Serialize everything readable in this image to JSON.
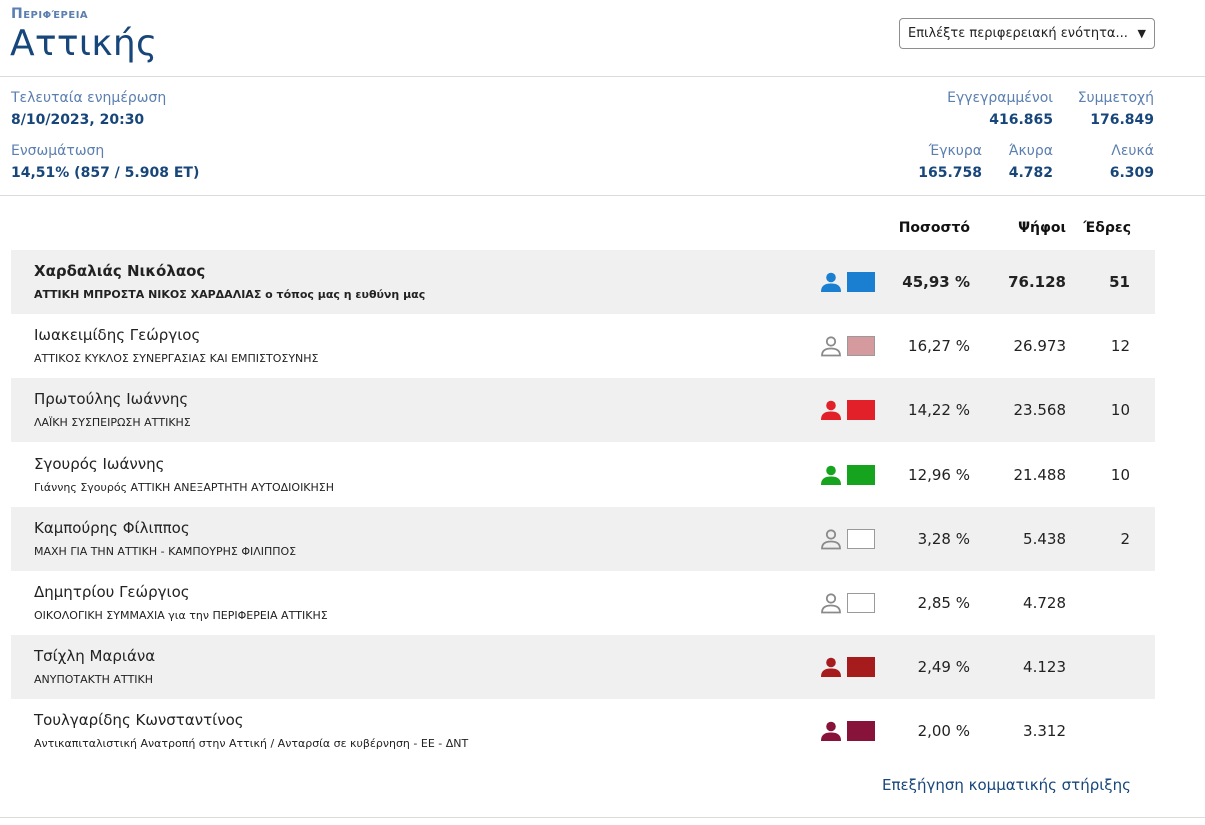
{
  "header": {
    "region_label": "Περιφέρεια",
    "region_name": "Αττικής",
    "select_placeholder": "Επιλέξτε περιφερειακή ενότητα..."
  },
  "stats": {
    "last_update_label": "Τελευταία ενημέρωση",
    "last_update_value": "8/10/2023, 20:30",
    "integration_label": "Ενσωμάτωση",
    "integration_value": "14,51% (857 / 5.908 ΕΤ)",
    "registered_label": "Εγγεγραμμένοι",
    "registered_value": "416.865",
    "turnout_label": "Συμμετοχή",
    "turnout_value": "176.849",
    "valid_label": "Έγκυρα",
    "valid_value": "165.758",
    "invalid_label": "Άκυρα",
    "invalid_value": "4.782",
    "blank_label": "Λευκά",
    "blank_value": "6.309"
  },
  "table": {
    "headers": {
      "pct": "Ποσοστό",
      "votes": "Ψήφοι",
      "seats": "Έδρες"
    },
    "rows": [
      {
        "name": "Χαρδαλιάς Νικόλαος",
        "party": "ΑΤΤΙΚΗ ΜΠΡΟΣΤΑ ΝΙΚΟΣ ΧΑΡΔΑΛΙΑΣ ο τόπος μας η ευθύνη μας",
        "pct": "45,93 %",
        "votes": "76.128",
        "seats": "51",
        "color": "#1a7fd1",
        "icon_style": "filled"
      },
      {
        "name": "Ιωακειμίδης Γεώργιος",
        "party": "ΑΤΤΙΚΟΣ ΚΥΚΛΟΣ ΣΥΝΕΡΓΑΣΙΑΣ ΚΑΙ ΕΜΠΙΣΤΟΣΥΝΗΣ",
        "pct": "16,27 %",
        "votes": "26.973",
        "seats": "12",
        "color": "#d59a9e",
        "icon_style": "outline"
      },
      {
        "name": "Πρωτούλης Ιωάννης",
        "party": "ΛΑΪΚΗ ΣΥΣΠΕΙΡΩΣΗ ΑΤΤΙΚΗΣ",
        "pct": "14,22 %",
        "votes": "23.568",
        "seats": "10",
        "color": "#e2202a",
        "icon_style": "filled"
      },
      {
        "name": "Σγουρός Ιωάννης",
        "party": "Γιάννης Σγουρός ΑΤΤΙΚΗ ΑΝΕΞΑΡΤΗΤΗ ΑΥΤΟΔΙΟΙΚΗΣΗ",
        "pct": "12,96 %",
        "votes": "21.488",
        "seats": "10",
        "color": "#16a31e",
        "icon_style": "filled"
      },
      {
        "name": "Καμπούρης Φίλιππος",
        "party": "ΜΑΧΗ ΓΙΑ ΤΗΝ ΑΤΤΙΚΗ - ΚΑΜΠΟΥΡΗΣ ΦΙΛΙΠΠΟΣ",
        "pct": "3,28 %",
        "votes": "5.438",
        "seats": "2",
        "color": "#ffffff",
        "icon_style": "outline"
      },
      {
        "name": "Δημητρίου Γεώργιος",
        "party": "ΟΙΚΟΛΟΓΙΚΗ ΣΥΜΜΑΧΙΑ για την ΠΕΡΙΦΕΡΕΙΑ ΑΤΤΙΚΗΣ",
        "pct": "2,85 %",
        "votes": "4.728",
        "seats": "",
        "color": "#ffffff",
        "icon_style": "outline"
      },
      {
        "name": "Τσίχλη Μαριάνα",
        "party": "ΑΝΥΠΟΤΑΚΤΗ ΑΤΤΙΚΗ",
        "pct": "2,49 %",
        "votes": "4.123",
        "seats": "",
        "color": "#a61c1c",
        "icon_style": "filled"
      },
      {
        "name": "Τουλγαρίδης Κωνσταντίνος",
        "party": "Αντικαπιταλιστική Ανατροπή στην Αττική / Ανταρσία σε κυβέρνηση - ΕΕ - ΔΝΤ",
        "pct": "2,00 %",
        "votes": "3.312",
        "seats": "",
        "color": "#87133a",
        "icon_style": "filled"
      }
    ]
  },
  "footer": {
    "explain_link": "Επεξήγηση κομματικής στήριξης"
  },
  "icons": {
    "person": "person-icon",
    "dropdown": "chevron-down-icon"
  }
}
